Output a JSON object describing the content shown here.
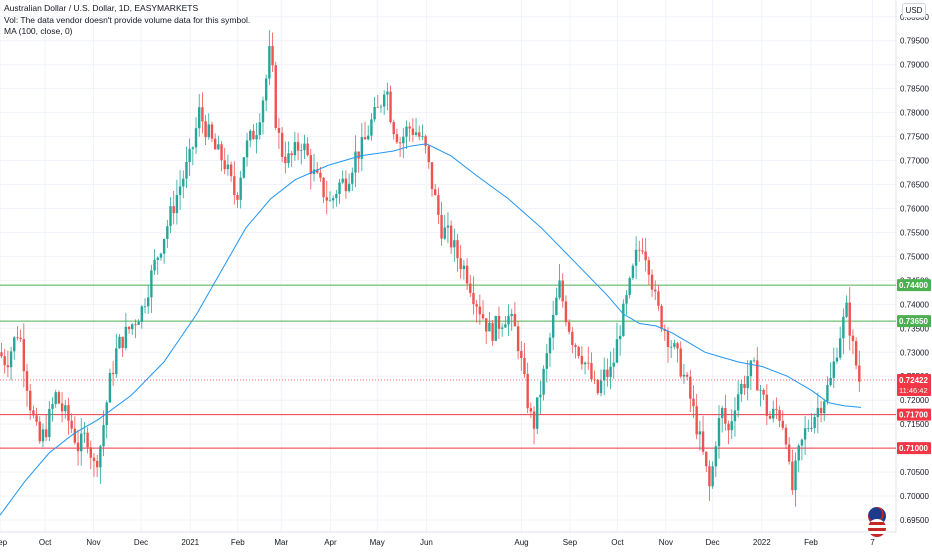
{
  "legend": {
    "symbol": "Australian Dollar / U.S. Dollar, 1D, EASYMARKETS",
    "volume_note": "Vol: The data vendor doesn't provide volume data for this symbol.",
    "ma_label": "MA (100, close, 0)"
  },
  "currency": "USD",
  "colors": {
    "up": "#26a69a",
    "down": "#ef5350",
    "ma": "#2196f3",
    "support": "#4caf50",
    "resistance": "#f23645",
    "grid": "#f0f3fa",
    "axis_text": "#131722"
  },
  "chart_data": {
    "type": "candlestick",
    "title": "Australian Dollar / U.S. Dollar, 1D, EASYMARKETS",
    "ylim": [
      0.6925,
      0.8035
    ],
    "y_ticks": [
      "0.69500",
      "0.70000",
      "0.70500",
      "0.71000",
      "0.71500",
      "0.72000",
      "0.72500",
      "0.73000",
      "0.73500",
      "0.74000",
      "0.74500",
      "0.75000",
      "0.75500",
      "0.76000",
      "0.76500",
      "0.77000",
      "0.77500",
      "0.78000",
      "0.78500",
      "0.79000",
      "0.79500",
      "0.80000"
    ],
    "x_ticks": [
      {
        "label": "Sep",
        "t": 0
      },
      {
        "label": "Oct",
        "t": 0.055
      },
      {
        "label": "Nov",
        "t": 0.114
      },
      {
        "label": "Dec",
        "t": 0.172
      },
      {
        "label": "2021",
        "t": 0.232
      },
      {
        "label": "Feb",
        "t": 0.29
      },
      {
        "label": "Mar",
        "t": 0.343
      },
      {
        "label": "Apr",
        "t": 0.403
      },
      {
        "label": "May",
        "t": 0.46
      },
      {
        "label": "Jun",
        "t": 0.52
      },
      {
        "label": "Aug",
        "t": 0.636
      },
      {
        "label": "Sep",
        "t": 0.695
      },
      {
        "label": "Oct",
        "t": 0.753
      },
      {
        "label": "Nov",
        "t": 0.812
      },
      {
        "label": "Dec",
        "t": 0.869
      },
      {
        "label": "2022",
        "t": 0.929
      },
      {
        "label": "Feb",
        "t": 0.989
      },
      {
        "label": "7",
        "t": 1.064
      }
    ],
    "price_path": [
      [
        0,
        0.73
      ],
      [
        0.01,
        0.728
      ],
      [
        0.025,
        0.735
      ],
      [
        0.04,
        0.718
      ],
      [
        0.05,
        0.711
      ],
      [
        0.058,
        0.714
      ],
      [
        0.07,
        0.721
      ],
      [
        0.078,
        0.718
      ],
      [
        0.088,
        0.715
      ],
      [
        0.098,
        0.71
      ],
      [
        0.108,
        0.713
      ],
      [
        0.117,
        0.706
      ],
      [
        0.125,
        0.711
      ],
      [
        0.135,
        0.723
      ],
      [
        0.145,
        0.731
      ],
      [
        0.16,
        0.735
      ],
      [
        0.175,
        0.739
      ],
      [
        0.19,
        0.748
      ],
      [
        0.205,
        0.756
      ],
      [
        0.22,
        0.764
      ],
      [
        0.235,
        0.771
      ],
      [
        0.245,
        0.78
      ],
      [
        0.255,
        0.776
      ],
      [
        0.265,
        0.772
      ],
      [
        0.275,
        0.77
      ],
      [
        0.29,
        0.762
      ],
      [
        0.3,
        0.772
      ],
      [
        0.315,
        0.777
      ],
      [
        0.325,
        0.785
      ],
      [
        0.332,
        0.794
      ],
      [
        0.338,
        0.779
      ],
      [
        0.345,
        0.772
      ],
      [
        0.355,
        0.77
      ],
      [
        0.37,
        0.774
      ],
      [
        0.385,
        0.767
      ],
      [
        0.395,
        0.764
      ],
      [
        0.405,
        0.761
      ],
      [
        0.415,
        0.765
      ],
      [
        0.425,
        0.766
      ],
      [
        0.435,
        0.771
      ],
      [
        0.445,
        0.773
      ],
      [
        0.455,
        0.778
      ],
      [
        0.465,
        0.781
      ],
      [
        0.472,
        0.787
      ],
      [
        0.48,
        0.778
      ],
      [
        0.49,
        0.774
      ],
      [
        0.5,
        0.777
      ],
      [
        0.51,
        0.776
      ],
      [
        0.52,
        0.773
      ],
      [
        0.53,
        0.764
      ],
      [
        0.54,
        0.756
      ],
      [
        0.55,
        0.754
      ],
      [
        0.56,
        0.75
      ],
      [
        0.57,
        0.747
      ],
      [
        0.58,
        0.742
      ],
      [
        0.59,
        0.738
      ],
      [
        0.6,
        0.734
      ],
      [
        0.61,
        0.736
      ],
      [
        0.62,
        0.738
      ],
      [
        0.632,
        0.734
      ],
      [
        0.642,
        0.723
      ],
      [
        0.652,
        0.714
      ],
      [
        0.66,
        0.721
      ],
      [
        0.668,
        0.728
      ],
      [
        0.676,
        0.736
      ],
      [
        0.684,
        0.744
      ],
      [
        0.692,
        0.738
      ],
      [
        0.7,
        0.733
      ],
      [
        0.71,
        0.73
      ],
      [
        0.72,
        0.726
      ],
      [
        0.73,
        0.721
      ],
      [
        0.738,
        0.725
      ],
      [
        0.748,
        0.726
      ],
      [
        0.758,
        0.735
      ],
      [
        0.768,
        0.742
      ],
      [
        0.778,
        0.75
      ],
      [
        0.786,
        0.753
      ],
      [
        0.794,
        0.748
      ],
      [
        0.802,
        0.74
      ],
      [
        0.81,
        0.736
      ],
      [
        0.82,
        0.732
      ],
      [
        0.83,
        0.728
      ],
      [
        0.84,
        0.723
      ],
      [
        0.85,
        0.716
      ],
      [
        0.86,
        0.708
      ],
      [
        0.868,
        0.701
      ],
      [
        0.875,
        0.712
      ],
      [
        0.882,
        0.718
      ],
      [
        0.89,
        0.713
      ],
      [
        0.9,
        0.721
      ],
      [
        0.91,
        0.724
      ],
      [
        0.92,
        0.727
      ],
      [
        0.93,
        0.722
      ],
      [
        0.94,
        0.716
      ],
      [
        0.95,
        0.718
      ],
      [
        0.96,
        0.714
      ],
      [
        0.967,
        0.7
      ],
      [
        0.975,
        0.708
      ],
      [
        0.985,
        0.714
      ],
      [
        0.995,
        0.717
      ],
      [
        1.005,
        0.72
      ],
      [
        1.015,
        0.724
      ],
      [
        1.025,
        0.733
      ],
      [
        1.035,
        0.739
      ],
      [
        1.043,
        0.73
      ],
      [
        1.05,
        0.7242
      ]
    ],
    "ma_100": [
      [
        0,
        0.696
      ],
      [
        0.03,
        0.703
      ],
      [
        0.06,
        0.709
      ],
      [
        0.09,
        0.713
      ],
      [
        0.12,
        0.716
      ],
      [
        0.16,
        0.721
      ],
      [
        0.2,
        0.728
      ],
      [
        0.24,
        0.738
      ],
      [
        0.28,
        0.75
      ],
      [
        0.3,
        0.756
      ],
      [
        0.33,
        0.762
      ],
      [
        0.36,
        0.766
      ],
      [
        0.4,
        0.769
      ],
      [
        0.44,
        0.771
      ],
      [
        0.48,
        0.772
      ],
      [
        0.5,
        0.773
      ],
      [
        0.52,
        0.7735
      ],
      [
        0.55,
        0.771
      ],
      [
        0.58,
        0.767
      ],
      [
        0.62,
        0.762
      ],
      [
        0.66,
        0.756
      ],
      [
        0.7,
        0.749
      ],
      [
        0.74,
        0.742
      ],
      [
        0.76,
        0.738
      ],
      [
        0.78,
        0.736
      ],
      [
        0.8,
        0.7355
      ],
      [
        0.82,
        0.734
      ],
      [
        0.84,
        0.732
      ],
      [
        0.86,
        0.73
      ],
      [
        0.88,
        0.729
      ],
      [
        0.9,
        0.728
      ],
      [
        0.93,
        0.727
      ],
      [
        0.96,
        0.725
      ],
      [
        0.99,
        0.722
      ],
      [
        1.01,
        0.7195
      ],
      [
        1.03,
        0.7188
      ],
      [
        1.05,
        0.7185
      ]
    ],
    "horizontal_levels": [
      {
        "label": "0.74400",
        "value": 0.744,
        "kind": "support"
      },
      {
        "label": "0.73650",
        "value": 0.7365,
        "kind": "support"
      },
      {
        "label": "0.71700",
        "value": 0.717,
        "kind": "resistance"
      },
      {
        "label": "0.71000",
        "value": 0.71,
        "kind": "resistance"
      }
    ],
    "current": {
      "label": "0.72422",
      "value": 0.72422,
      "countdown": "11:46:42"
    }
  }
}
